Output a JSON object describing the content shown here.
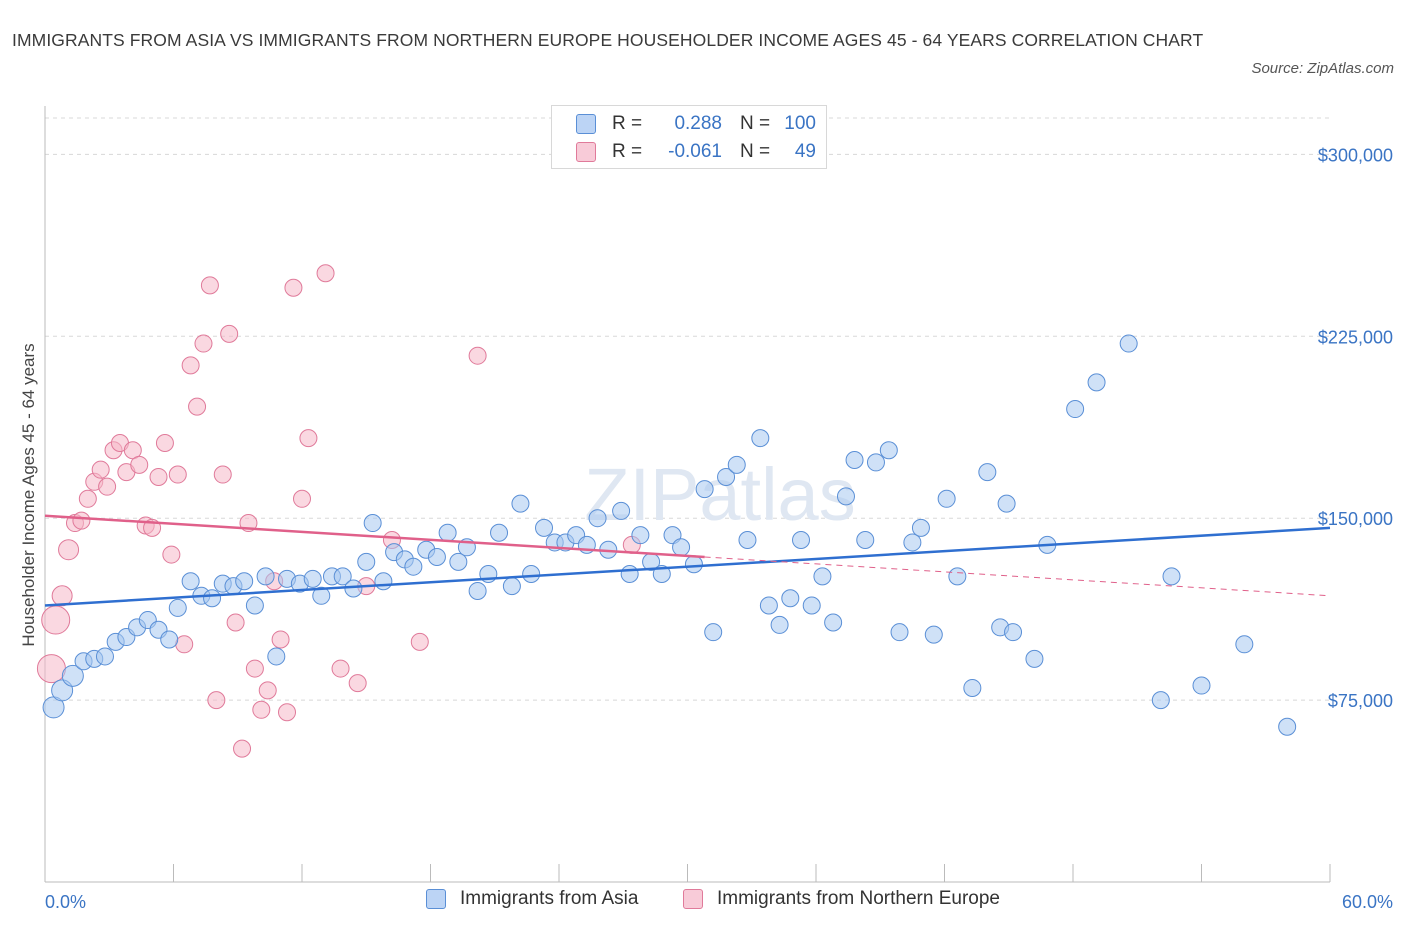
{
  "title": "IMMIGRANTS FROM ASIA VS IMMIGRANTS FROM NORTHERN EUROPE HOUSEHOLDER INCOME AGES 45 - 64 YEARS CORRELATION CHART",
  "source": "Source: ZipAtlas.com",
  "watermark": "ZIPatlas",
  "legend": {
    "rows": [
      {
        "r_label": "R =",
        "r_value": "0.288",
        "n_label": "N =",
        "n_value": "100",
        "color": "#a8c8f0"
      },
      {
        "r_label": "R =",
        "r_value": "-0.061",
        "n_label": "N =",
        "n_value": "49",
        "color": "#f5b8c8"
      }
    ]
  },
  "bottom_legend": [
    "Immigrants from Asia",
    "Immigrants from Northern Europe"
  ],
  "colors": {
    "asia_fill": "#a8c8f0",
    "asia_stroke": "#5a8fd6",
    "asia_line": "#2f6fd0",
    "ne_fill": "#f5b8c8",
    "ne_stroke": "#e07a9a",
    "ne_line": "#e0608a",
    "grid": "#d8d8d8",
    "axis_text": "#3a74c4"
  },
  "chart_data": {
    "type": "scatter",
    "title": "IMMIGRANTS FROM ASIA VS IMMIGRANTS FROM NORTHERN EUROPE HOUSEHOLDER INCOME AGES 45 - 64 YEARS CORRELATION CHART",
    "xlabel": "",
    "ylabel": "Householder Income Ages 45 - 64 years",
    "xlim": [
      0,
      60
    ],
    "ylim": [
      0,
      315000
    ],
    "x_tick_labels": [
      "0.0%",
      "60.0%"
    ],
    "y_ticks": [
      75000,
      150000,
      225000,
      300000
    ],
    "y_tick_labels": [
      "$75,000",
      "$150,000",
      "$225,000",
      "$300,000"
    ],
    "grid": true,
    "series": [
      {
        "name": "Immigrants from Asia",
        "trend": {
          "x": [
            0,
            60
          ],
          "y": [
            114000,
            146000
          ]
        },
        "points": [
          [
            0.4,
            72000
          ],
          [
            0.8,
            79000
          ],
          [
            1.3,
            85000
          ],
          [
            1.8,
            91000
          ],
          [
            2.3,
            92000
          ],
          [
            2.8,
            93000
          ],
          [
            3.3,
            99000
          ],
          [
            3.8,
            101000
          ],
          [
            4.3,
            105000
          ],
          [
            4.8,
            108000
          ],
          [
            5.3,
            104000
          ],
          [
            5.8,
            100000
          ],
          [
            6.2,
            113000
          ],
          [
            6.8,
            124000
          ],
          [
            7.3,
            118000
          ],
          [
            7.8,
            117000
          ],
          [
            8.3,
            123000
          ],
          [
            8.8,
            122000
          ],
          [
            9.3,
            124000
          ],
          [
            9.8,
            114000
          ],
          [
            10.3,
            126000
          ],
          [
            10.8,
            93000
          ],
          [
            11.3,
            125000
          ],
          [
            11.9,
            123000
          ],
          [
            12.5,
            125000
          ],
          [
            12.9,
            118000
          ],
          [
            13.4,
            126000
          ],
          [
            13.9,
            126000
          ],
          [
            14.4,
            121000
          ],
          [
            15.0,
            132000
          ],
          [
            15.3,
            148000
          ],
          [
            15.8,
            124000
          ],
          [
            16.3,
            136000
          ],
          [
            16.8,
            133000
          ],
          [
            17.2,
            130000
          ],
          [
            17.8,
            137000
          ],
          [
            18.3,
            134000
          ],
          [
            18.8,
            144000
          ],
          [
            19.3,
            132000
          ],
          [
            19.7,
            138000
          ],
          [
            20.2,
            120000
          ],
          [
            20.7,
            127000
          ],
          [
            21.2,
            144000
          ],
          [
            21.8,
            122000
          ],
          [
            22.2,
            156000
          ],
          [
            22.7,
            127000
          ],
          [
            23.3,
            146000
          ],
          [
            23.8,
            140000
          ],
          [
            24.3,
            140000
          ],
          [
            24.8,
            143000
          ],
          [
            25.3,
            139000
          ],
          [
            25.8,
            150000
          ],
          [
            26.3,
            137000
          ],
          [
            26.9,
            153000
          ],
          [
            27.3,
            127000
          ],
          [
            27.8,
            143000
          ],
          [
            28.3,
            132000
          ],
          [
            28.8,
            127000
          ],
          [
            29.3,
            143000
          ],
          [
            29.7,
            138000
          ],
          [
            30.3,
            131000
          ],
          [
            30.8,
            162000
          ],
          [
            31.2,
            103000
          ],
          [
            31.8,
            167000
          ],
          [
            32.3,
            172000
          ],
          [
            32.8,
            141000
          ],
          [
            33.4,
            183000
          ],
          [
            33.8,
            114000
          ],
          [
            34.3,
            106000
          ],
          [
            34.8,
            117000
          ],
          [
            35.3,
            141000
          ],
          [
            35.8,
            114000
          ],
          [
            36.3,
            126000
          ],
          [
            36.8,
            107000
          ],
          [
            37.4,
            159000
          ],
          [
            37.8,
            174000
          ],
          [
            38.3,
            141000
          ],
          [
            38.8,
            173000
          ],
          [
            39.4,
            178000
          ],
          [
            39.9,
            103000
          ],
          [
            40.5,
            140000
          ],
          [
            40.9,
            146000
          ],
          [
            41.5,
            102000
          ],
          [
            42.1,
            158000
          ],
          [
            42.6,
            126000
          ],
          [
            43.3,
            80000
          ],
          [
            44.0,
            169000
          ],
          [
            44.6,
            105000
          ],
          [
            44.9,
            156000
          ],
          [
            45.2,
            103000
          ],
          [
            46.2,
            92000
          ],
          [
            46.8,
            139000
          ],
          [
            48.1,
            195000
          ],
          [
            49.1,
            206000
          ],
          [
            50.6,
            222000
          ],
          [
            52.1,
            75000
          ],
          [
            52.6,
            126000
          ],
          [
            54.0,
            81000
          ],
          [
            56.0,
            98000
          ],
          [
            58.0,
            64000
          ]
        ]
      },
      {
        "name": "Immigrants from Northern Europe",
        "trend": {
          "x": [
            0,
            30.8
          ],
          "y": [
            151000,
            134000
          ]
        },
        "trend_dashed": {
          "x": [
            30.8,
            60
          ],
          "y": [
            134000,
            118000
          ]
        },
        "points": [
          [
            0.3,
            88000
          ],
          [
            0.5,
            108000
          ],
          [
            0.8,
            118000
          ],
          [
            1.1,
            137000
          ],
          [
            1.4,
            148000
          ],
          [
            1.7,
            149000
          ],
          [
            2.0,
            158000
          ],
          [
            2.3,
            165000
          ],
          [
            2.6,
            170000
          ],
          [
            2.9,
            163000
          ],
          [
            3.2,
            178000
          ],
          [
            3.5,
            181000
          ],
          [
            3.8,
            169000
          ],
          [
            4.1,
            178000
          ],
          [
            4.4,
            172000
          ],
          [
            4.7,
            147000
          ],
          [
            5.0,
            146000
          ],
          [
            5.3,
            167000
          ],
          [
            5.6,
            181000
          ],
          [
            5.9,
            135000
          ],
          [
            6.2,
            168000
          ],
          [
            6.5,
            98000
          ],
          [
            6.8,
            213000
          ],
          [
            7.1,
            196000
          ],
          [
            7.4,
            222000
          ],
          [
            7.7,
            246000
          ],
          [
            8.0,
            75000
          ],
          [
            8.3,
            168000
          ],
          [
            8.6,
            226000
          ],
          [
            8.9,
            107000
          ],
          [
            9.2,
            55000
          ],
          [
            9.5,
            148000
          ],
          [
            9.8,
            88000
          ],
          [
            10.1,
            71000
          ],
          [
            10.4,
            79000
          ],
          [
            10.7,
            124000
          ],
          [
            11.0,
            100000
          ],
          [
            11.3,
            70000
          ],
          [
            11.6,
            245000
          ],
          [
            12.0,
            158000
          ],
          [
            12.3,
            183000
          ],
          [
            13.1,
            251000
          ],
          [
            13.8,
            88000
          ],
          [
            14.6,
            82000
          ],
          [
            15.0,
            122000
          ],
          [
            16.2,
            141000
          ],
          [
            17.5,
            99000
          ],
          [
            20.2,
            217000
          ],
          [
            27.4,
            139000
          ]
        ]
      }
    ]
  }
}
